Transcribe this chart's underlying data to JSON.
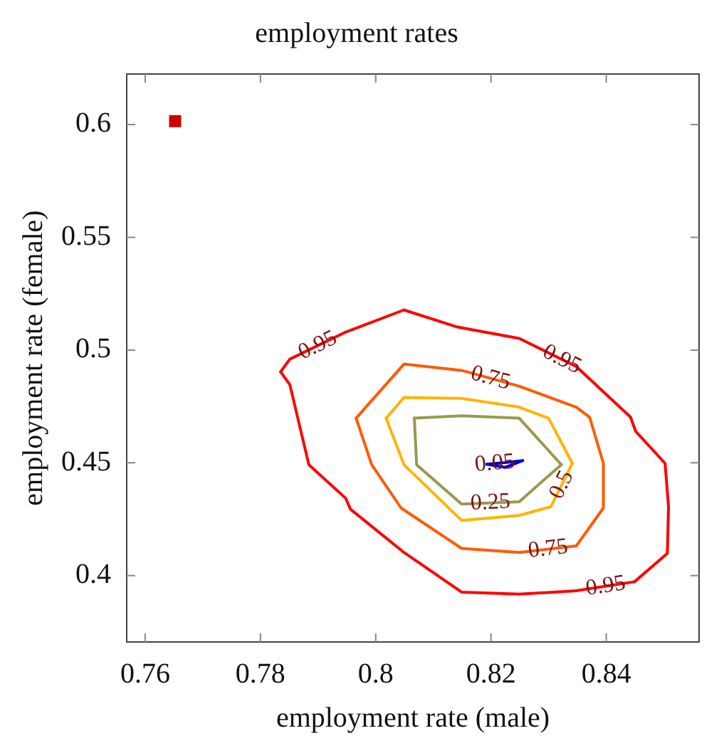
{
  "chart_data": {
    "type": "line",
    "title": "employment rates",
    "xlabel": "employment rate (male)",
    "ylabel": "employment rate (female)",
    "xlim": [
      0.7568,
      0.8561
    ],
    "ylim": [
      0.3706,
      0.6224
    ],
    "xticks": [
      0.76,
      0.78,
      0.8,
      0.82,
      0.84
    ],
    "yticks": [
      0.4,
      0.45,
      0.5,
      0.55,
      0.6
    ],
    "legend": false,
    "series": [
      {
        "color": "#ff0000",
        "x": [
          0.7835,
          0.7851,
          0.7948,
          0.8049,
          0.8142,
          0.8249,
          0.8348,
          0.8442,
          0.8451,
          0.8502,
          0.8508,
          0.8506,
          0.8449
        ],
        "values": [
          0.4904,
          0.496,
          0.508,
          0.5178,
          0.5102,
          0.5052,
          0.4927,
          0.4703,
          0.464,
          0.4498,
          0.4306,
          0.4099,
          0.3973
        ]
      },
      {
        "color": "#ff0000",
        "x": [
          0.7835,
          0.7851,
          0.7884,
          0.7948,
          0.7956,
          0.8049,
          0.8149,
          0.8249,
          0.8348,
          0.8449
        ],
        "values": [
          0.4904,
          0.4847,
          0.4492,
          0.4343,
          0.4295,
          0.4103,
          0.3927,
          0.3918,
          0.3933,
          0.3973
        ]
      },
      {
        "color": "#ff5a00",
        "x": [
          0.7966,
          0.8049,
          0.8149,
          0.8249,
          0.8348,
          0.8371,
          0.8395,
          0.8395,
          0.8348
        ],
        "values": [
          0.4698,
          0.4938,
          0.491,
          0.484,
          0.4747,
          0.4703,
          0.4498,
          0.43,
          0.4132
        ]
      },
      {
        "color": "#ff5a00",
        "x": [
          0.7966,
          0.7993,
          0.8044,
          0.8149,
          0.8249,
          0.8348
        ],
        "values": [
          0.4698,
          0.4492,
          0.43,
          0.4121,
          0.4103,
          0.4132
        ]
      },
      {
        "color": "#ffb400",
        "x": [
          0.8018,
          0.8049,
          0.8149,
          0.8249,
          0.83,
          0.8341
        ],
        "values": [
          0.4698,
          0.479,
          0.4786,
          0.4747,
          0.4698,
          0.4498
        ]
      },
      {
        "color": "#ffb400",
        "x": [
          0.8018,
          0.8049,
          0.8149,
          0.8249,
          0.8304,
          0.8341
        ],
        "values": [
          0.4698,
          0.4492,
          0.4245,
          0.4267,
          0.4306,
          0.4498
        ]
      },
      {
        "color": "#999950",
        "x": [
          0.8067,
          0.8149,
          0.8249,
          0.8322
        ],
        "values": [
          0.4698,
          0.4709,
          0.4698,
          0.4492
        ]
      },
      {
        "color": "#999950",
        "x": [
          0.8067,
          0.8071,
          0.8149,
          0.8249,
          0.8322
        ],
        "values": [
          0.4698,
          0.4492,
          0.4317,
          0.4328,
          0.4492
        ]
      },
      {
        "color": "#0000cc",
        "x": [
          0.8193,
          0.822,
          0.8255
        ],
        "values": [
          0.4494,
          0.45,
          0.451
        ]
      },
      {
        "color": "#0000cc",
        "x": [
          0.8193,
          0.8225,
          0.8255
        ],
        "values": [
          0.4494,
          0.448,
          0.451
        ]
      },
      {
        "type": "scatter",
        "marker": "square",
        "color": "#cc0000",
        "x": [
          0.7652
        ],
        "values": [
          0.6015
        ]
      }
    ],
    "annotations": [
      {
        "text": "0.95",
        "x": 0.78995,
        "y": 0.502
      },
      {
        "text": "0.95",
        "x": 0.8323,
        "y": 0.4958
      },
      {
        "text": "0.75",
        "x": 0.8199,
        "y": 0.4875
      },
      {
        "text": "0.05",
        "x": 0.82065,
        "y": 0.4497
      },
      {
        "text": "0.5",
        "x": 0.8323,
        "y": 0.4402
      },
      {
        "text": "0.25",
        "x": 0.8199,
        "y": 0.4323
      },
      {
        "text": "0.75",
        "x": 0.8299,
        "y": 0.4118
      },
      {
        "text": "0.95",
        "x": 0.8399,
        "y": 0.3953
      }
    ]
  }
}
